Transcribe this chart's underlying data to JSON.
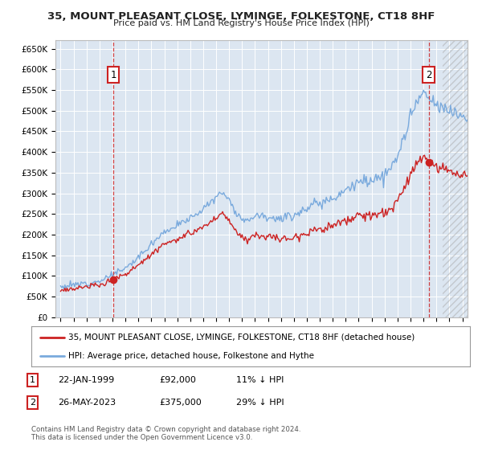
{
  "title": "35, MOUNT PLEASANT CLOSE, LYMINGE, FOLKESTONE, CT18 8HF",
  "subtitle": "Price paid vs. HM Land Registry's House Price Index (HPI)",
  "ylim": [
    0,
    670000
  ],
  "yticks": [
    0,
    50000,
    100000,
    150000,
    200000,
    250000,
    300000,
    350000,
    400000,
    450000,
    500000,
    550000,
    600000,
    650000
  ],
  "ytick_labels": [
    "£0",
    "£50K",
    "£100K",
    "£150K",
    "£200K",
    "£250K",
    "£300K",
    "£350K",
    "£400K",
    "£450K",
    "£500K",
    "£550K",
    "£600K",
    "£650K"
  ],
  "sale1_date": 1999.07,
  "sale1_price": 92000,
  "sale2_date": 2023.4,
  "sale2_price": 375000,
  "hpi_color": "#7aaadd",
  "price_color": "#cc2222",
  "plot_bg_color": "#dce6f1",
  "grid_color": "#ffffff",
  "legend_label_price": "35, MOUNT PLEASANT CLOSE, LYMINGE, FOLKESTONE, CT18 8HF (detached house)",
  "legend_label_hpi": "HPI: Average price, detached house, Folkestone and Hythe",
  "footnote1": "Contains HM Land Registry data © Crown copyright and database right 2024.",
  "footnote2": "This data is licensed under the Open Government Licence v3.0.",
  "table_row1": [
    "1",
    "22-JAN-1999",
    "£92,000",
    "11% ↓ HPI"
  ],
  "table_row2": [
    "2",
    "26-MAY-2023",
    "£375,000",
    "29% ↓ HPI"
  ],
  "hatch_start": 2024.5,
  "xlim_left": 1994.6,
  "xlim_right": 2026.4
}
